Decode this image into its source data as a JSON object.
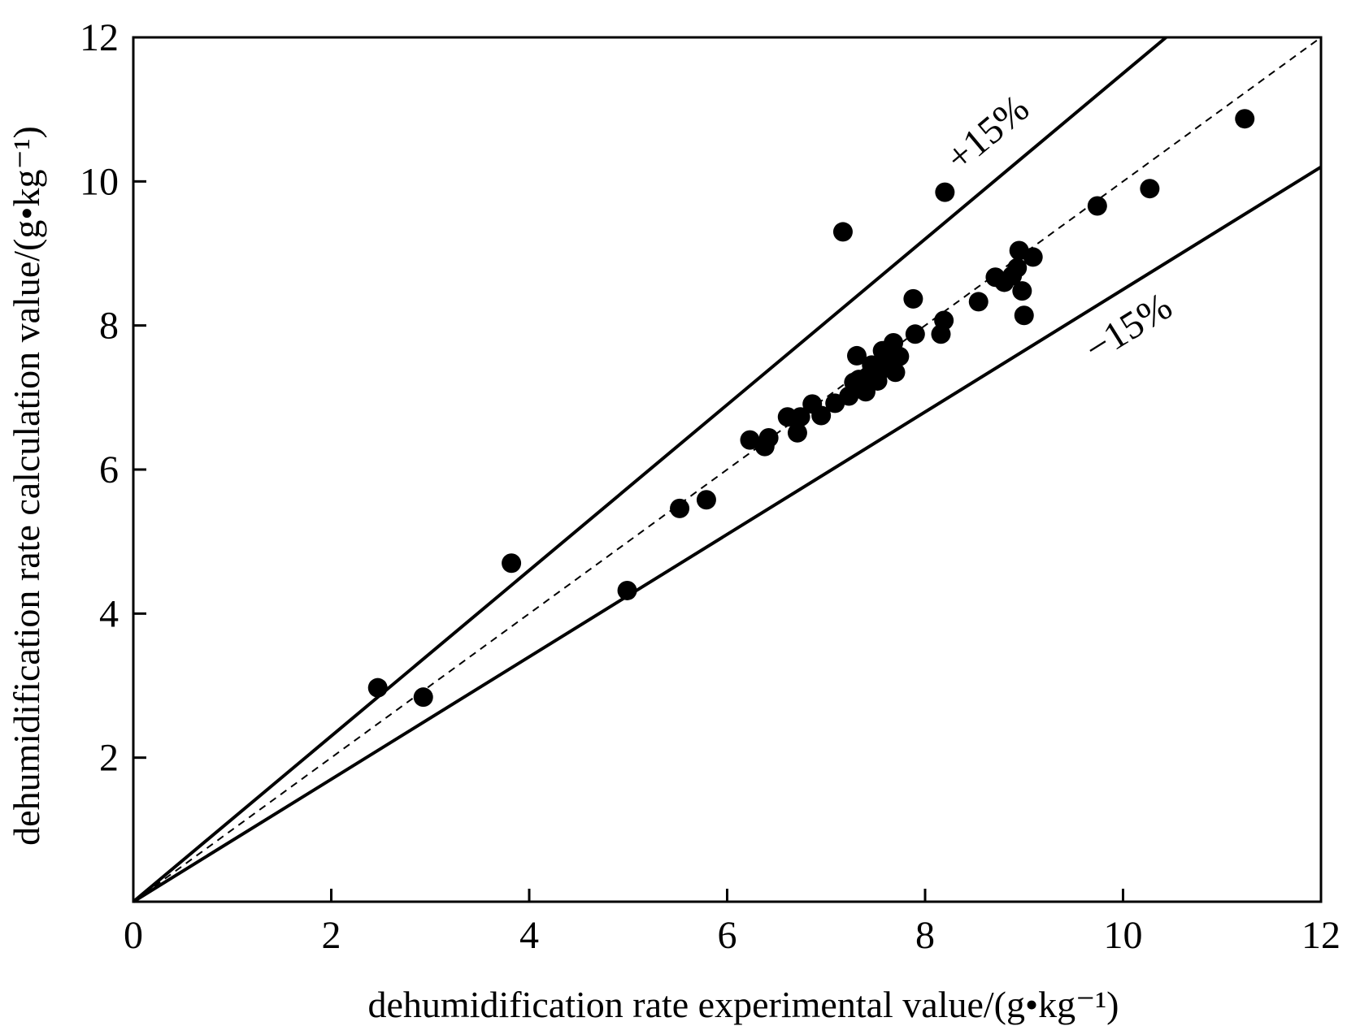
{
  "chart_data": {
    "type": "scatter",
    "title": "",
    "xlabel": "dehumidification rate experimental value/(g•kg⁻¹)",
    "ylabel": "dehumidification rate calculation value/(g•kg⁻¹)",
    "xlim": [
      0,
      12
    ],
    "ylim": [
      0,
      12
    ],
    "xticks": [
      0,
      2,
      4,
      6,
      8,
      10,
      12
    ],
    "yticks": [
      2,
      4,
      6,
      8,
      10,
      12
    ],
    "origin_label": "0",
    "grid": false,
    "reference_lines": [
      {
        "name": "+15%",
        "slope": 1.15,
        "style": "solid"
      },
      {
        "name": "y = x",
        "slope": 1.0,
        "style": "dashed"
      },
      {
        "name": "−15%",
        "slope": 0.85,
        "style": "solid"
      }
    ],
    "band_labels": {
      "upper": "+15%",
      "lower": "−15%"
    },
    "series": [
      {
        "name": "data",
        "marker": "filled-circle",
        "color": "#000000",
        "x": [
          2.47,
          2.93,
          3.82,
          4.99,
          5.52,
          5.79,
          6.23,
          6.38,
          6.42,
          6.61,
          6.71,
          6.74,
          6.86,
          6.95,
          7.09,
          7.17,
          7.23,
          7.28,
          7.31,
          7.33,
          7.36,
          7.4,
          7.42,
          7.46,
          7.49,
          7.52,
          7.55,
          7.57,
          7.59,
          7.62,
          7.65,
          7.68,
          7.7,
          7.74,
          7.88,
          7.9,
          8.16,
          8.19,
          8.2,
          8.54,
          8.71,
          8.8,
          8.88,
          8.93,
          8.95,
          8.98,
          9.0,
          9.09,
          9.74,
          10.27,
          11.23
        ],
        "y": [
          2.97,
          2.84,
          4.7,
          4.32,
          5.46,
          5.58,
          6.41,
          6.32,
          6.44,
          6.73,
          6.51,
          6.73,
          6.91,
          6.75,
          6.92,
          9.3,
          7.02,
          7.21,
          7.58,
          7.25,
          7.14,
          7.08,
          7.29,
          7.45,
          7.42,
          7.23,
          7.38,
          7.65,
          7.49,
          7.63,
          7.53,
          7.76,
          7.35,
          7.57,
          8.37,
          7.88,
          7.88,
          8.07,
          9.85,
          8.33,
          8.67,
          8.6,
          8.69,
          8.8,
          9.04,
          8.48,
          8.14,
          8.95,
          9.66,
          9.9,
          10.87
        ]
      }
    ]
  }
}
